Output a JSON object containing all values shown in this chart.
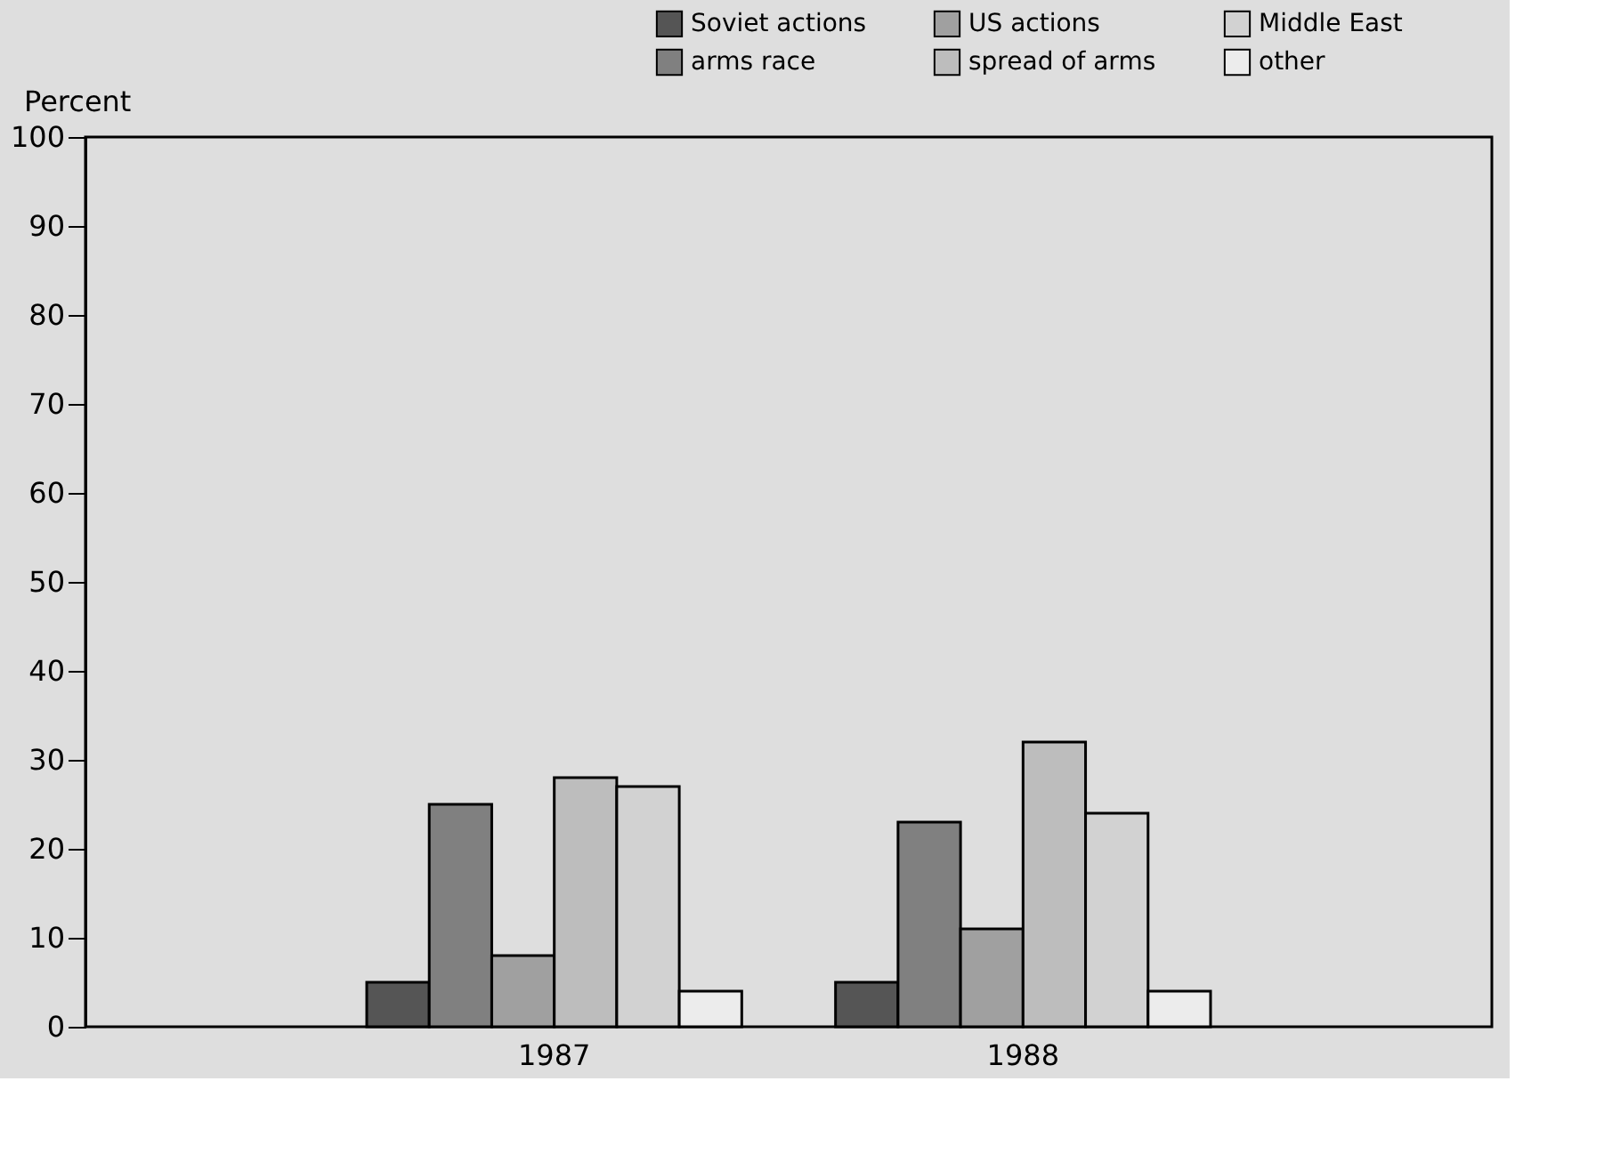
{
  "chart_data": {
    "type": "bar",
    "ylabel": "Percent",
    "categories": [
      "1987",
      "1988"
    ],
    "series": [
      {
        "name": "Soviet actions",
        "color": "#555555",
        "values": [
          5,
          5
        ]
      },
      {
        "name": "arms race",
        "color": "#808080",
        "values": [
          25,
          23
        ]
      },
      {
        "name": "US actions",
        "color": "#a0a0a0",
        "values": [
          8,
          11
        ]
      },
      {
        "name": "spread of arms",
        "color": "#bdbdbd",
        "values": [
          28,
          32
        ]
      },
      {
        "name": "Middle East",
        "color": "#d2d2d2",
        "values": [
          27,
          24
        ]
      },
      {
        "name": "other",
        "color": "#ececec",
        "values": [
          4,
          4
        ]
      }
    ],
    "ylim": [
      0,
      100
    ],
    "yticks": [
      0,
      10,
      20,
      30,
      40,
      50,
      60,
      70,
      80,
      90,
      100
    ],
    "legend": "top right"
  }
}
